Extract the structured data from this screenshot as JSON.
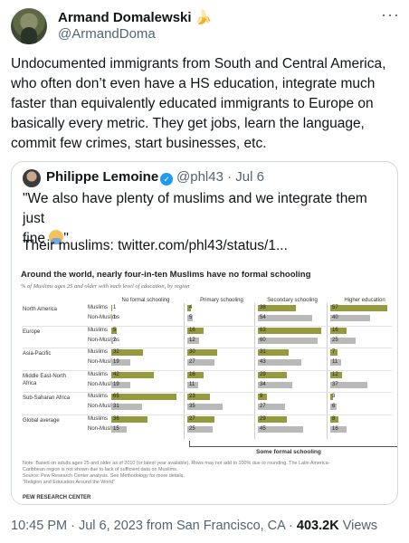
{
  "author": {
    "name": "Armand Domalewski",
    "emoji": "🍌",
    "handle": "@ArmandDoma",
    "more_label": "···"
  },
  "tweet_text": "Undocumented immigrants from South and Central America, who often don’t even have a HS education, integrate much faster than equivalently educated immigrants to Europe on basically every metric. They get jobs, learn the language, commit few crimes, start businesses, etc.",
  "quote": {
    "name": "Philippe Lemoine",
    "handle_date": "@phl43 · Jul 6",
    "text_line1": "\"We also have plenty of muslims and we integrate them just",
    "text_line2_start": "fine ",
    "text_line2_end": "\"",
    "link_line": "Their muslims:  twitter.com/phl43/status/1..."
  },
  "infographic": {
    "title": "Around the world, nearly four-in-ten Muslims have no formal schooling",
    "subtitle": "% of Muslims ages 25 and older with each level of education, by region",
    "columns": [
      "No formal schooling",
      "Primary schooling",
      "Secondary schooling",
      "Higher education"
    ],
    "groups": [
      "Muslims",
      "Non-Muslims"
    ],
    "regions": [
      {
        "name": "North America",
        "muslims": [
          1,
          4,
          38,
          57
        ],
        "non_muslims": [
          1,
          5,
          54,
          40
        ]
      },
      {
        "name": "Europe",
        "muslims": [
          5,
          16,
          63,
          16
        ],
        "non_muslims": [
          2,
          12,
          60,
          25
        ]
      },
      {
        "name": "Asia-Pacific",
        "muslims": [
          32,
          30,
          31,
          7
        ],
        "non_muslims": [
          19,
          27,
          43,
          11
        ]
      },
      {
        "name": "Middle East-North Africa",
        "muslims": [
          42,
          16,
          29,
          12
        ],
        "non_muslims": [
          19,
          11,
          34,
          37
        ]
      },
      {
        "name": "Sub-Saharan Africa",
        "muslims": [
          65,
          23,
          9,
          3
        ],
        "non_muslims": [
          31,
          35,
          27,
          6
        ]
      },
      {
        "name": "Global average",
        "muslims": [
          36,
          27,
          29,
          8
        ],
        "non_muslims": [
          15,
          25,
          45,
          16
        ]
      }
    ],
    "bracket_label": "Some formal schooling",
    "note_lines": [
      "Note: Based on adults ages 25 and older as of 2010 (or latest year available). Rows may not add to 100% due to rounding. The Latin America-",
      "Caribbean region is not shown due to lack of sufficient data on Muslims.",
      "Source: Pew Research Center analysis. See Methodology for more details.",
      "“Religion and Education Around the World”"
    ],
    "source_org": "PEW RESEARCH CENTER",
    "colors": {
      "muslims": "#949a3d",
      "non_muslims": "#b9b9b9"
    }
  },
  "footer": {
    "time_place": "10:45 PM · Jul 6, 2023 from San Francisco, CA · ",
    "views_count": "403.2K",
    "views_label": " Views"
  }
}
